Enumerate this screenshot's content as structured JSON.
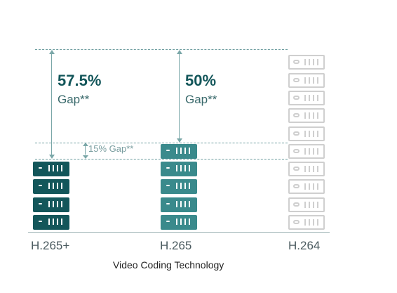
{
  "chart": {
    "categories": [
      "H.265+",
      "H.265",
      "H.264"
    ],
    "x_axis_title": "Video Coding Technology",
    "server_counts": [
      4,
      5,
      10
    ]
  },
  "annotations": {
    "h265plus_gap_value": "57.5%",
    "h265plus_gap_label": "Gap**",
    "h265_gap_value": "50%",
    "h265_gap_label": "Gap**",
    "between_gap_label": "15% Gap**"
  },
  "colors": {
    "h265plus": "#13565a",
    "h265": "#3a8a8c",
    "h264": "#cfcfcf",
    "guide": "#6f9ea0"
  },
  "icons": {
    "unit": "server-rack-icon"
  }
}
